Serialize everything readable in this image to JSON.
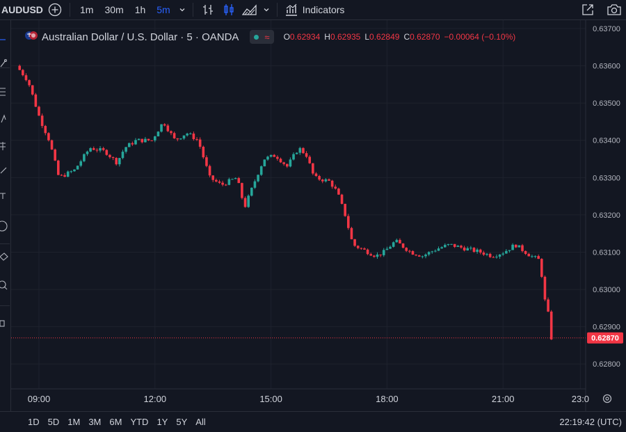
{
  "toolbar": {
    "symbol": "AUDUSD",
    "timeframes": [
      "1m",
      "30m",
      "1h",
      "5m"
    ],
    "active_timeframe": "5m",
    "indicators_label": "Indicators"
  },
  "legend": {
    "title": "Australian Dollar / U.S. Dollar · 5 · OANDA",
    "o_label": "O",
    "o_value": "0.62934",
    "h_label": "H",
    "h_value": "0.62935",
    "l_label": "L",
    "l_value": "0.62849",
    "c_label": "C",
    "c_value": "0.62870",
    "change": "−0.00064 (−0.10%)"
  },
  "bottom": {
    "ranges": [
      "1D",
      "5D",
      "1M",
      "3M",
      "6M",
      "YTD",
      "1Y",
      "5Y",
      "All"
    ],
    "clock": "22:19:42 (UTC)"
  },
  "colors": {
    "up": "#26a69a",
    "down": "#f23645",
    "background": "#131722",
    "grid": "#1e222d",
    "accent": "#2962ff"
  },
  "chart_data": {
    "type": "candlestick",
    "yticks": [
      "0.63700",
      "0.63600",
      "0.63500",
      "0.63400",
      "0.63300",
      "0.63200",
      "0.63100",
      "0.63000",
      "0.62900",
      "0.62800"
    ],
    "xticks": [
      "09:00",
      "12:00",
      "15:00",
      "18:00",
      "21:00",
      "23:0"
    ],
    "xtick_hours": [
      9,
      12,
      15,
      18,
      21,
      23
    ],
    "ylim": [
      0.62765,
      0.637
    ],
    "last_price": "0.62870",
    "anchors": [
      [
        8.5,
        0.636
      ],
      [
        8.8,
        0.6356
      ],
      [
        9.1,
        0.6346
      ],
      [
        9.35,
        0.634
      ],
      [
        9.6,
        0.633
      ],
      [
        10.0,
        0.6332
      ],
      [
        10.4,
        0.6338
      ],
      [
        10.8,
        0.6337
      ],
      [
        11.1,
        0.6334
      ],
      [
        11.3,
        0.6338
      ],
      [
        11.6,
        0.634
      ],
      [
        12.0,
        0.634
      ],
      [
        12.3,
        0.6345
      ],
      [
        12.6,
        0.634
      ],
      [
        12.9,
        0.6342
      ],
      [
        13.2,
        0.634
      ],
      [
        13.5,
        0.633
      ],
      [
        13.8,
        0.6328
      ],
      [
        14.2,
        0.633
      ],
      [
        14.4,
        0.6322
      ],
      [
        14.7,
        0.633
      ],
      [
        14.9,
        0.6335
      ],
      [
        15.2,
        0.6336
      ],
      [
        15.5,
        0.6333
      ],
      [
        15.8,
        0.6338
      ],
      [
        16.0,
        0.6336
      ],
      [
        16.2,
        0.633
      ],
      [
        16.6,
        0.6329
      ],
      [
        16.8,
        0.6326
      ],
      [
        17.0,
        0.632
      ],
      [
        17.2,
        0.6312
      ],
      [
        17.6,
        0.631
      ],
      [
        17.8,
        0.6309
      ],
      [
        18.0,
        0.631
      ],
      [
        18.3,
        0.6313
      ],
      [
        18.7,
        0.631
      ],
      [
        19.0,
        0.6309
      ],
      [
        19.4,
        0.6311
      ],
      [
        19.7,
        0.6312
      ],
      [
        20.1,
        0.6311
      ],
      [
        20.5,
        0.631
      ],
      [
        20.8,
        0.6309
      ],
      [
        21.1,
        0.631
      ],
      [
        21.4,
        0.6312
      ],
      [
        21.8,
        0.6309
      ],
      [
        22.0,
        0.6308
      ],
      [
        22.1,
        0.6303
      ],
      [
        22.2,
        0.6294
      ],
      [
        22.25,
        0.62935
      ],
      [
        22.33,
        0.6287
      ]
    ]
  }
}
